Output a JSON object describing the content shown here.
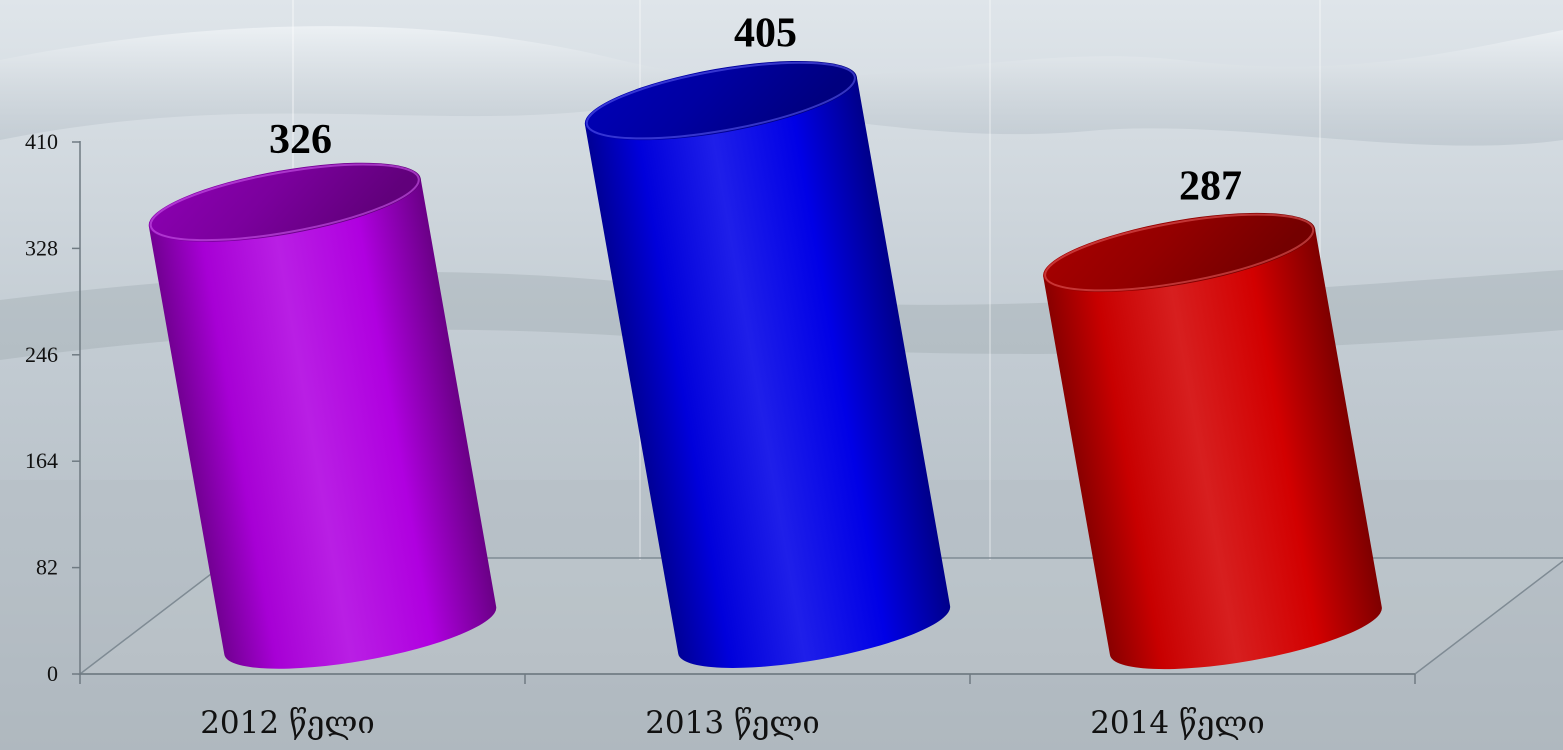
{
  "chart_data": {
    "type": "bar",
    "style": "3d-cylinder",
    "categories": [
      "2012 წელი",
      "2013 წელი",
      "2014 წელი"
    ],
    "values": [
      326,
      405,
      287
    ],
    "data_labels": [
      "326",
      "405",
      "287"
    ],
    "yticks": [
      0,
      82,
      164,
      246,
      328,
      410
    ],
    "ytick_labels": [
      "0",
      "82",
      "164",
      "246",
      "328",
      "410"
    ],
    "ylim": [
      0,
      410
    ],
    "colors": [
      "#b000e0",
      "#0000e6",
      "#d20000"
    ],
    "grid": false,
    "legend": "none",
    "title": "",
    "xlabel": "",
    "ylabel": ""
  }
}
